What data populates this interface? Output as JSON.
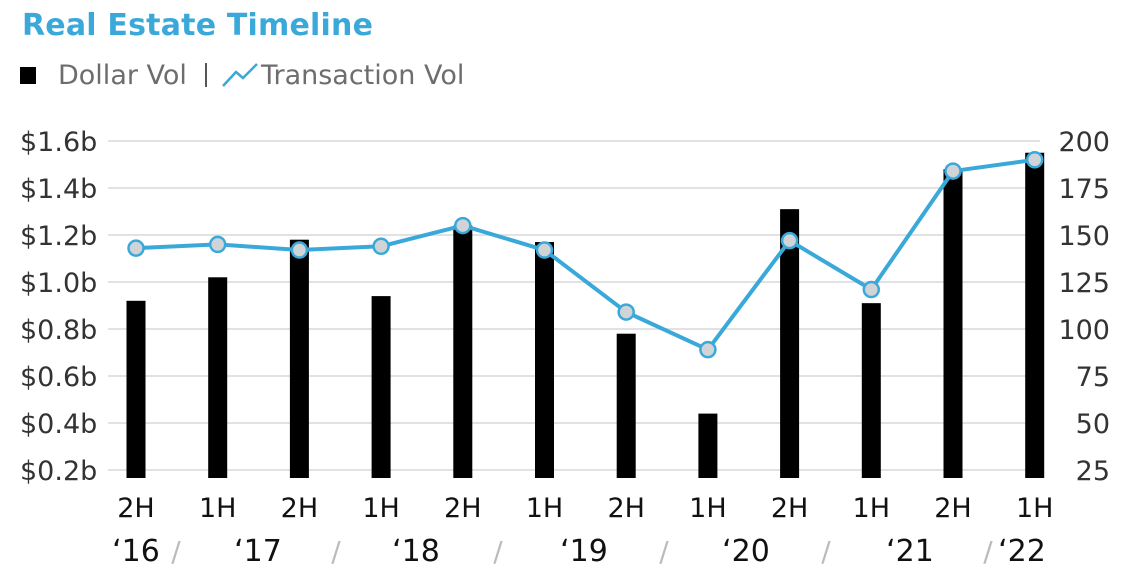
{
  "title": "Real Estate Timeline",
  "legend": {
    "dollar": "Dollar Vol",
    "separator": "|",
    "transaction": "Transaction Vol"
  },
  "colors": {
    "title": "#3aa9da",
    "bar": "#000000",
    "line": "#3aa9da",
    "marker_fill": "#d0d4d7",
    "marker_stroke": "#3aa9da",
    "grid": "#e2e2e2",
    "tick_text": "#333333"
  },
  "chart_data": {
    "type": "bar",
    "title": "Real Estate Timeline",
    "categories": [
      "2H",
      "1H",
      "2H",
      "1H",
      "2H",
      "1H",
      "2H",
      "1H",
      "2H",
      "1H",
      "2H",
      "1H"
    ],
    "years": [
      "‘16",
      "‘17",
      "‘18",
      "‘19",
      "‘20",
      "‘21",
      "‘22"
    ],
    "year_separator": "/",
    "series": [
      {
        "name": "Dollar Vol",
        "type": "bar",
        "axis": "left",
        "values": [
          0.92,
          1.02,
          1.18,
          0.94,
          1.24,
          1.17,
          0.78,
          0.44,
          1.31,
          0.91,
          1.48,
          1.55
        ]
      },
      {
        "name": "Transaction Vol",
        "type": "line",
        "axis": "right",
        "values": [
          143,
          145,
          142,
          144,
          155,
          142,
          109,
          89,
          147,
          121,
          184,
          190
        ]
      }
    ],
    "y_left": {
      "ylim": [
        0.2,
        1.6
      ],
      "ticks": [
        1.6,
        1.4,
        1.2,
        1.0,
        0.8,
        0.6,
        0.4,
        0.2
      ],
      "tick_labels": [
        "$1.6b",
        "$1.4b",
        "$1.2b",
        "$1.0b",
        "$0.8b",
        "$0.6b",
        "$0.4b",
        "$0.2b"
      ]
    },
    "y_right": {
      "ylim": [
        25,
        200
      ],
      "ticks": [
        200,
        175,
        150,
        125,
        100,
        75,
        50,
        25
      ],
      "tick_labels": [
        "200",
        "175",
        "150",
        "125",
        "100",
        "75",
        "50",
        "25"
      ]
    },
    "grid": true,
    "legend_position": "top-left"
  }
}
